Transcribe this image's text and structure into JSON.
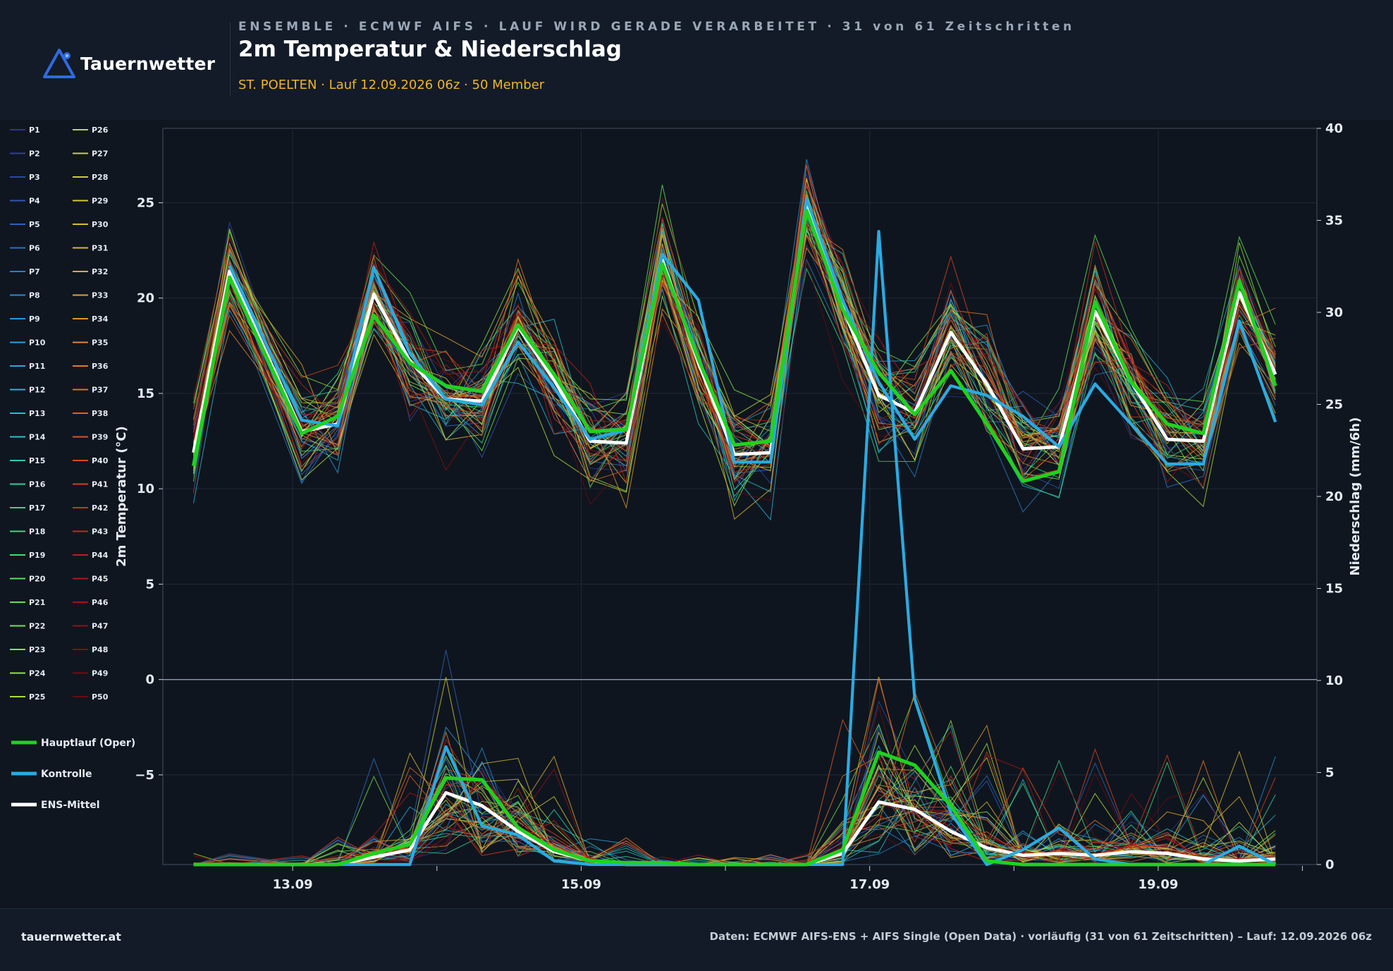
{
  "brand": {
    "name": "Tauernwetter",
    "site": "tauernwetter.at",
    "accent": "#2f6be0"
  },
  "header": {
    "kicker": "ENSEMBLE · ECMWF AIFS · LAUF WIRD GERADE VERARBEITET · 31 von 61 Zeitschritten",
    "title": "2m Temperatur & Niederschlag",
    "subtitle": "ST. POELTEN · Lauf 12.09.2026 06z · 50 Member"
  },
  "footer": {
    "source": "Daten: ECMWF AIFS-ENS + AIFS Single (Open Data) · vorläufig (31 von 61 Zeitschritten) – Lauf: 12.09.2026 06z"
  },
  "chart_data": {
    "type": "line",
    "title": "2m Temperatur & Niederschlag",
    "ylabel": "2m Temperatur (°C)",
    "y2label": "Niederschlag (mm/6h)",
    "ylim": [
      -9.7,
      28.9
    ],
    "y2lim": [
      0,
      40
    ],
    "yticks": [
      -5,
      0,
      5,
      10,
      15,
      20,
      25
    ],
    "y2ticks": [
      0,
      5,
      10,
      15,
      20,
      25,
      30,
      35,
      40
    ],
    "xlim": [
      12.1,
      20.1
    ],
    "xticks": [
      13,
      15,
      17,
      19
    ],
    "xtick_labels": [
      "13.09",
      "15.09",
      "17.09",
      "19.09"
    ],
    "x": [
      12.3125,
      12.5625,
      13.0625,
      13.3125,
      13.5625,
      13.8125,
      14.0625,
      14.3125,
      14.5625,
      14.8125,
      15.0625,
      15.3125,
      15.5625,
      15.8125,
      16.0625,
      16.3125,
      16.5625,
      16.8125,
      17.0625,
      17.3125,
      17.5625,
      17.8125,
      18.0625,
      18.3125,
      18.5625,
      18.8125,
      19.0625,
      19.3125,
      19.5625,
      19.8125
    ],
    "grid": true,
    "legend_position": "left",
    "member_legend": [
      "P1",
      "P2",
      "P3",
      "P4",
      "P5",
      "P6",
      "P7",
      "P8",
      "P9",
      "P10",
      "P11",
      "P12",
      "P13",
      "P14",
      "P15",
      "P16",
      "P17",
      "P18",
      "P19",
      "P20",
      "P21",
      "P22",
      "P23",
      "P24",
      "P25",
      "P26",
      "P27",
      "P28",
      "P29",
      "P30",
      "P31",
      "P32",
      "P33",
      "P34",
      "P35",
      "P36",
      "P37",
      "P38",
      "P39",
      "P40",
      "P41",
      "P42",
      "P43",
      "P44",
      "P45",
      "P46",
      "P47",
      "P48",
      "P49",
      "P50"
    ],
    "member_colors": [
      "#31348b",
      "#303d96",
      "#2f48a2",
      "#2f55ae",
      "#2d62b8",
      "#2c6fc2",
      "#2b7ccb",
      "#2a89d2",
      "#2a95d8",
      "#2aa0dc",
      "#2aaadd",
      "#2ab3d8",
      "#29bcd0",
      "#2ac3c4",
      "#2ccab5",
      "#2fd0a4",
      "#34d592",
      "#3cda80",
      "#46dd6e",
      "#54e05e",
      "#62e254",
      "#73e44d",
      "#85e548",
      "#97e344",
      "#a8e040",
      "#b6dc3b",
      "#c2d738",
      "#ccd035",
      "#d3c733",
      "#d9bd32",
      "#ddb331",
      "#e1a830",
      "#e39d2f",
      "#e5912e",
      "#e6852d",
      "#e6782b",
      "#e66b29",
      "#e45e27",
      "#e15125",
      "#dc4622",
      "#d63c20",
      "#ce321e",
      "#c5291c",
      "#ba211a",
      "#ae1a18",
      "#a11416",
      "#941014",
      "#860d12",
      "#780b10",
      "#6b0a0e"
    ],
    "series": [
      {
        "name": "Hauptlauf (Oper)",
        "color": "#1fd21f",
        "temp": [
          11.2,
          21.1,
          12.9,
          13.8,
          19.1,
          16.6,
          15.4,
          15.1,
          18.6,
          16.0,
          13.0,
          13.1,
          21.8,
          16.8,
          12.3,
          12.5,
          24.6,
          19.4,
          16.1,
          13.9,
          16.2,
          13.4,
          10.4,
          10.9,
          19.8,
          15.6,
          13.4,
          12.9,
          20.9,
          15.4
        ],
        "precip": [
          0,
          0,
          0,
          0,
          0.6,
          1.1,
          4.7,
          4.6,
          2.0,
          0.8,
          0.2,
          0.1,
          0.1,
          0,
          0,
          0,
          0,
          0.8,
          6.1,
          5.4,
          3.2,
          0.2,
          0,
          0,
          0,
          0,
          0,
          0,
          0,
          0
        ]
      },
      {
        "name": "Kontrolle",
        "color": "#29abe2",
        "temp": [
          null,
          21.7,
          13.6,
          13.3,
          21.6,
          17.1,
          14.7,
          14.4,
          17.7,
          15.3,
          12.6,
          13.1,
          22.3,
          19.9,
          11.4,
          11.4,
          25.2,
          19.9,
          15.6,
          12.6,
          15.4,
          14.9,
          13.8,
          12.2,
          15.5,
          13.4,
          11.3,
          11.3,
          18.8,
          13.5
        ],
        "precip": [
          0,
          0,
          0,
          0,
          0,
          0,
          6.4,
          2.1,
          1.6,
          0.2,
          0,
          0,
          0,
          0,
          0,
          0,
          0,
          0,
          34.4,
          9.0,
          2.8,
          0,
          0.8,
          2.0,
          0.3,
          0,
          0,
          0,
          1.0,
          0
        ]
      },
      {
        "name": "ENS-Mittel",
        "color": "#ffffff",
        "temp": [
          11.9,
          21.4,
          13.0,
          13.4,
          20.2,
          16.7,
          14.7,
          14.6,
          18.5,
          15.7,
          12.5,
          12.4,
          22.0,
          16.6,
          11.8,
          11.9,
          24.8,
          19.5,
          14.9,
          14.0,
          18.2,
          15.5,
          12.1,
          12.2,
          19.3,
          15.6,
          12.6,
          12.5,
          20.3,
          16.0
        ],
        "precip": [
          0,
          0,
          0,
          0,
          0.4,
          0.8,
          3.9,
          3.2,
          1.8,
          0.7,
          0.2,
          0,
          0,
          0,
          0,
          0,
          0,
          0.6,
          3.4,
          3.0,
          1.8,
          0.9,
          0.5,
          0.6,
          0.5,
          0.7,
          0.6,
          0.3,
          0.2,
          0.3
        ]
      }
    ]
  }
}
